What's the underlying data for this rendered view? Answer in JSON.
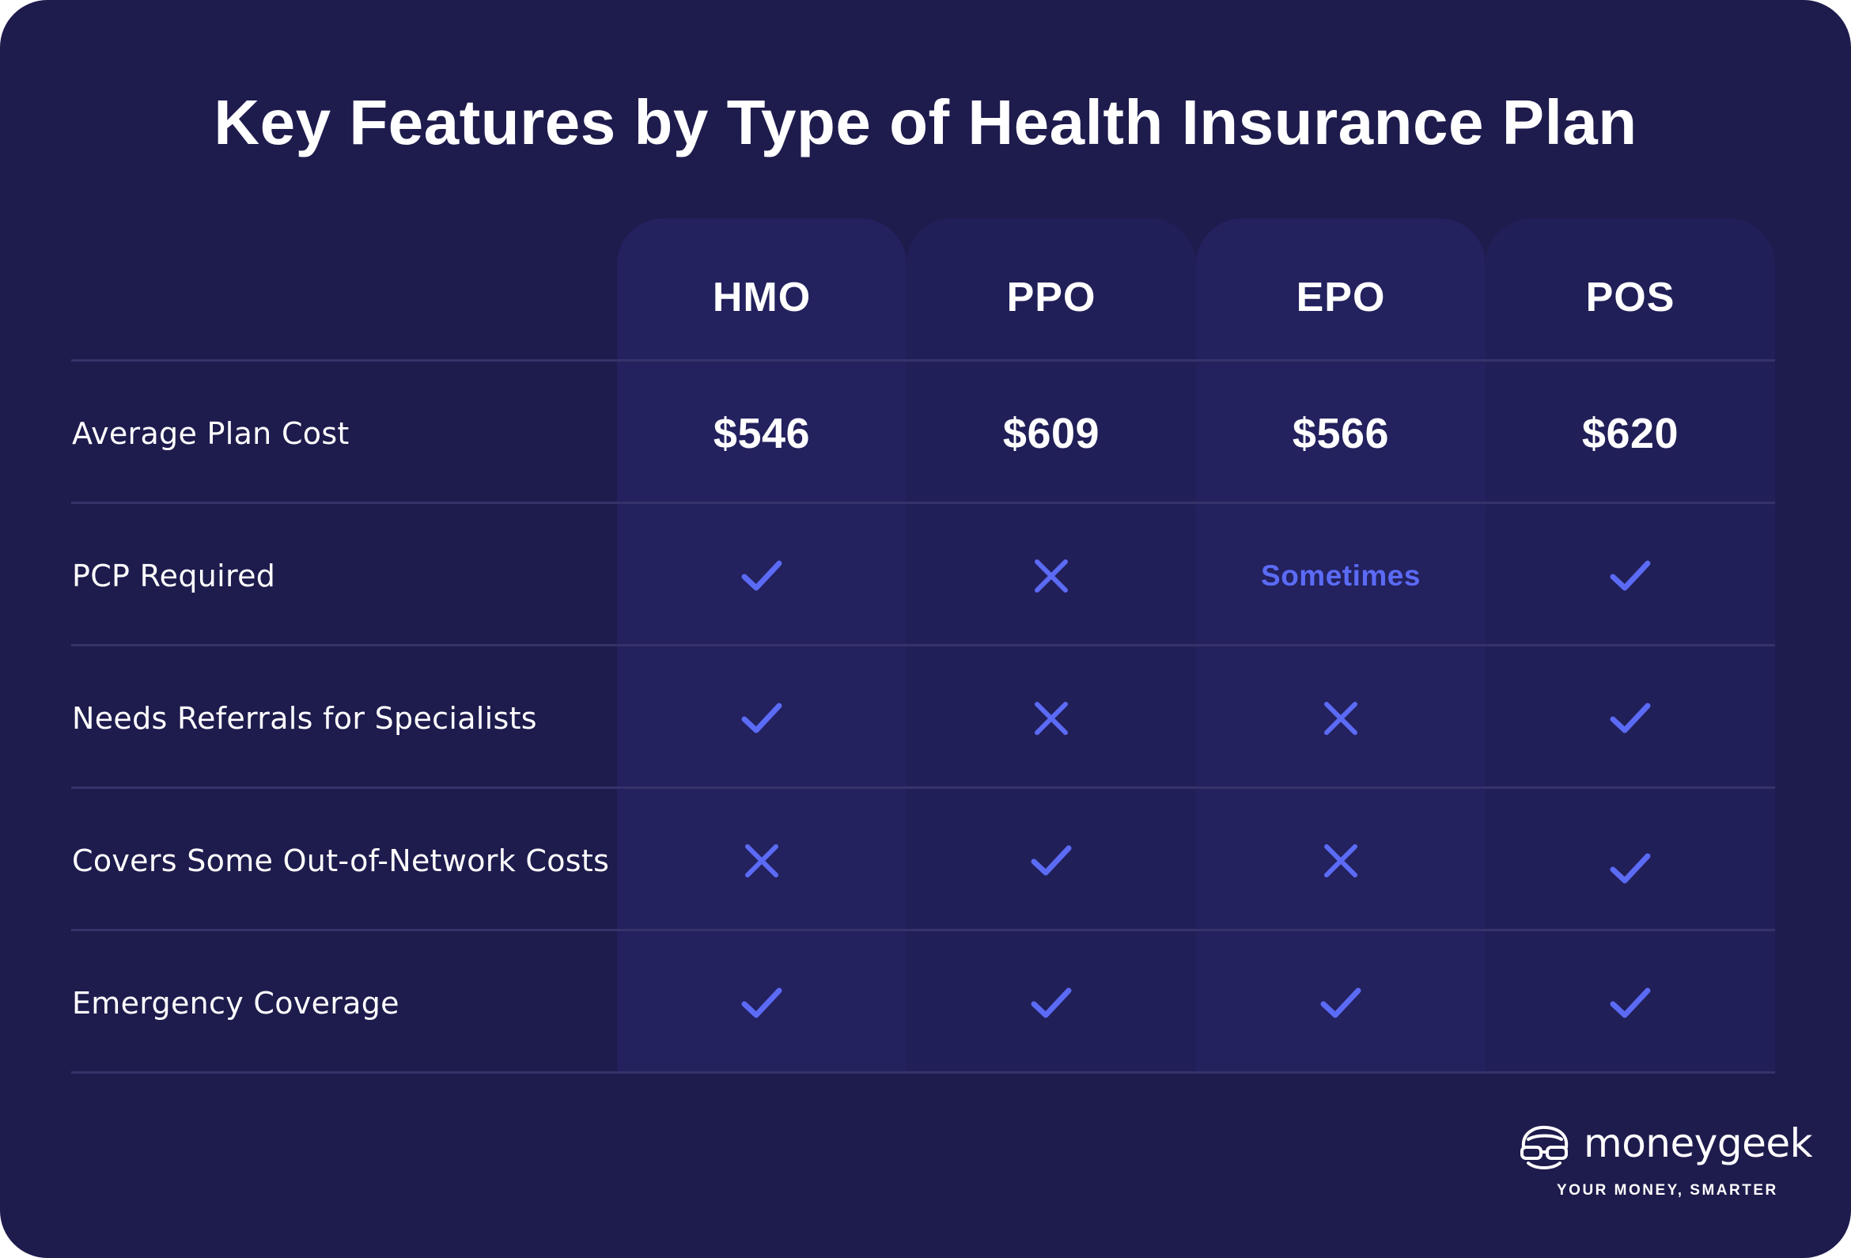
{
  "title": "Key Features by Type of Health Insurance Plan",
  "colors": {
    "background": "#1e1b4d",
    "column_highlight": "#23215e",
    "accent": "#5b6bf5",
    "text": "#ffffff",
    "divider": "#35336a"
  },
  "plans": [
    "HMO",
    "PPO",
    "EPO",
    "POS"
  ],
  "rows": [
    {
      "label": "Average Plan Cost",
      "cells": [
        {
          "type": "text",
          "value": "$546"
        },
        {
          "type": "text",
          "value": "$609"
        },
        {
          "type": "text",
          "value": "$566"
        },
        {
          "type": "text",
          "value": "$620"
        }
      ]
    },
    {
      "label": "PCP Required",
      "cells": [
        {
          "type": "icon",
          "icon": "check-icon"
        },
        {
          "type": "icon",
          "icon": "x-icon"
        },
        {
          "type": "word",
          "value": "Sometimes"
        },
        {
          "type": "icon",
          "icon": "check-icon"
        }
      ]
    },
    {
      "label": "Needs Referrals for Specialists",
      "cells": [
        {
          "type": "icon",
          "icon": "check-icon"
        },
        {
          "type": "icon",
          "icon": "x-icon"
        },
        {
          "type": "icon",
          "icon": "x-icon"
        },
        {
          "type": "icon",
          "icon": "check-icon"
        }
      ]
    },
    {
      "label": "Covers Some Out-of-Network Costs",
      "cells": [
        {
          "type": "icon",
          "icon": "x-icon"
        },
        {
          "type": "icon",
          "icon": "check-icon"
        },
        {
          "type": "icon",
          "icon": "x-icon"
        },
        {
          "type": "icon",
          "icon": "check-icon"
        }
      ]
    },
    {
      "label": "Emergency Coverage",
      "cells": [
        {
          "type": "icon",
          "icon": "check-icon"
        },
        {
          "type": "icon",
          "icon": "check-icon"
        },
        {
          "type": "icon",
          "icon": "check-icon"
        },
        {
          "type": "icon",
          "icon": "check-icon"
        }
      ]
    }
  ],
  "logo": {
    "name": "moneygeek",
    "tagline": "YOUR MONEY,  SMARTER",
    "icon": "geek-face-icon"
  }
}
